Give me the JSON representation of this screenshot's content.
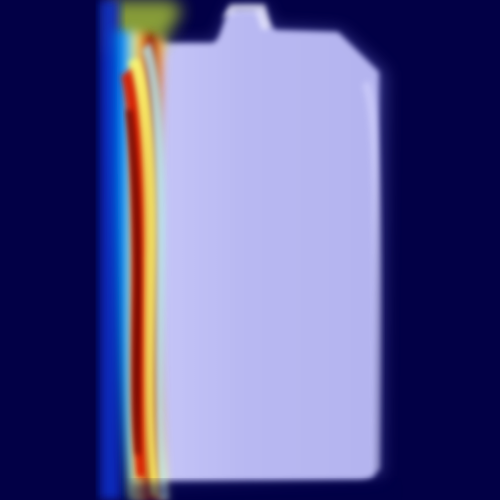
{
  "image": {
    "kind": "heatmap-overlay",
    "palette": {
      "background": "#020046",
      "object_fill": "#b8b8f2",
      "object_highlight": "#d2d2fb",
      "heat_low": "#0b2fc8",
      "heat_mid": "#00a6ff",
      "heat_warm": "#ffff66",
      "heat_hot": "#d81a00",
      "heat_core": "#5a0000",
      "heat_top": "#8fa637"
    }
  }
}
